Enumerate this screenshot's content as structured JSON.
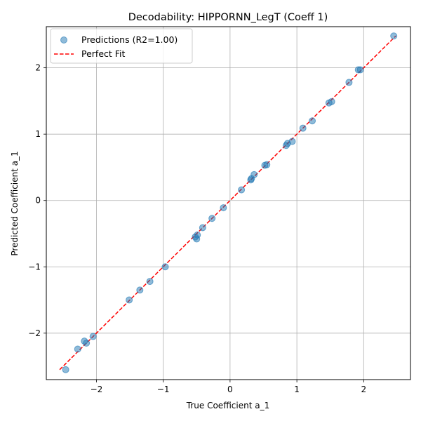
{
  "chart_data": {
    "type": "scatter",
    "title": "Decodability: HIPPORNN_LegT (Coeff 1)",
    "xlabel": "True Coefficient a_1",
    "ylabel": "Predicted Coefficient a_1",
    "xlim": [
      -2.75,
      2.7
    ],
    "ylim": [
      -2.7,
      2.62
    ],
    "xticks": [
      -2,
      -1,
      0,
      1,
      2
    ],
    "yticks": [
      -2,
      -1,
      0,
      1,
      2
    ],
    "xtick_labels": [
      "−2",
      "−1",
      "0",
      "1",
      "2"
    ],
    "ytick_labels": [
      "−2",
      "−1",
      "0",
      "1",
      "2"
    ],
    "grid": true,
    "legend_position": "top-left",
    "colors": {
      "points": "#1f77b4",
      "fit_line": "#ff0000",
      "grid": "#b0b0b0"
    },
    "series": [
      {
        "name": "Predictions (R2=1.00)",
        "kind": "scatter",
        "x": [
          -2.46,
          -2.28,
          -2.18,
          -2.15,
          -2.05,
          -1.51,
          -1.35,
          -1.2,
          -0.97,
          -0.52,
          -0.49,
          -0.5,
          -0.41,
          -0.27,
          -0.1,
          0.17,
          0.31,
          0.32,
          0.36,
          0.52,
          0.55,
          0.84,
          0.86,
          0.93,
          1.09,
          1.23,
          1.48,
          1.52,
          1.78,
          1.92,
          1.95,
          2.45
        ],
        "y": [
          -2.55,
          -2.24,
          -2.12,
          -2.15,
          -2.05,
          -1.5,
          -1.35,
          -1.22,
          -1.0,
          -0.55,
          -0.52,
          -0.58,
          -0.41,
          -0.27,
          -0.11,
          0.16,
          0.31,
          0.33,
          0.39,
          0.53,
          0.54,
          0.83,
          0.86,
          0.89,
          1.09,
          1.2,
          1.47,
          1.49,
          1.78,
          1.97,
          1.97,
          2.48
        ]
      },
      {
        "name": "Perfect Fit",
        "kind": "line",
        "x": [
          -2.55,
          2.48
        ],
        "y": [
          -2.55,
          2.48
        ]
      }
    ]
  }
}
